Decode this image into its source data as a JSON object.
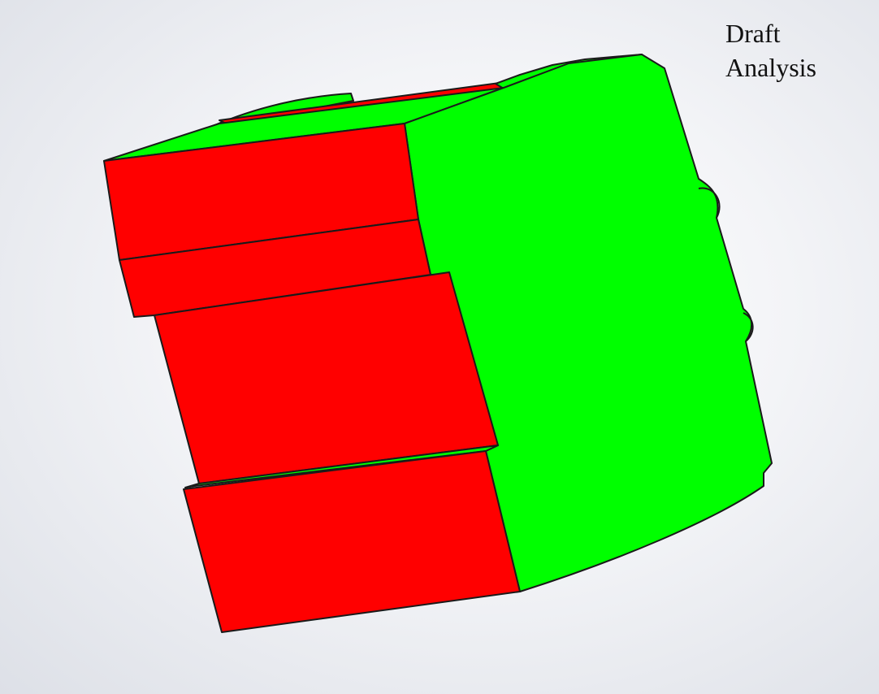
{
  "label": {
    "line1": "Draft",
    "line2": "Analysis"
  },
  "colors": {
    "positive_draft": "#00ff00",
    "negative_draft": "#ff0000",
    "edge": "#1a1a1a",
    "background": "#f3f4f7"
  }
}
